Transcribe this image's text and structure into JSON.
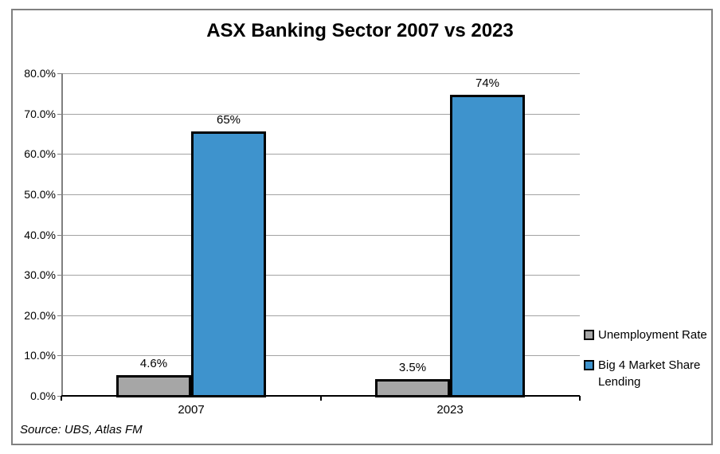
{
  "chart_data": {
    "type": "bar",
    "title": "ASX Banking Sector 2007 vs 2023",
    "categories": [
      "2007",
      "2023"
    ],
    "series": [
      {
        "name": "Unemployment Rate",
        "color": "#A6A6A6",
        "values": [
          4.6,
          3.5
        ],
        "data_labels": [
          "4.6%",
          "3.5%"
        ]
      },
      {
        "name": "Big 4 Market Share Lending",
        "color": "#3E93CD",
        "values": [
          65,
          74
        ],
        "data_labels": [
          "65%",
          "74%"
        ]
      }
    ],
    "ylim": [
      0,
      80
    ],
    "ytick_step": 10,
    "ytick_labels": [
      "0.0%",
      "10.0%",
      "20.0%",
      "30.0%",
      "40.0%",
      "50.0%",
      "60.0%",
      "70.0%",
      "80.0%"
    ],
    "grid": true,
    "legend_position": "right",
    "bar_border_color": "#000000",
    "gridline_color": "#a3a3a3",
    "axis_color": "#808080",
    "x_axis_color": "#000000",
    "source_note": "Source: UBS, Atlas FM"
  }
}
